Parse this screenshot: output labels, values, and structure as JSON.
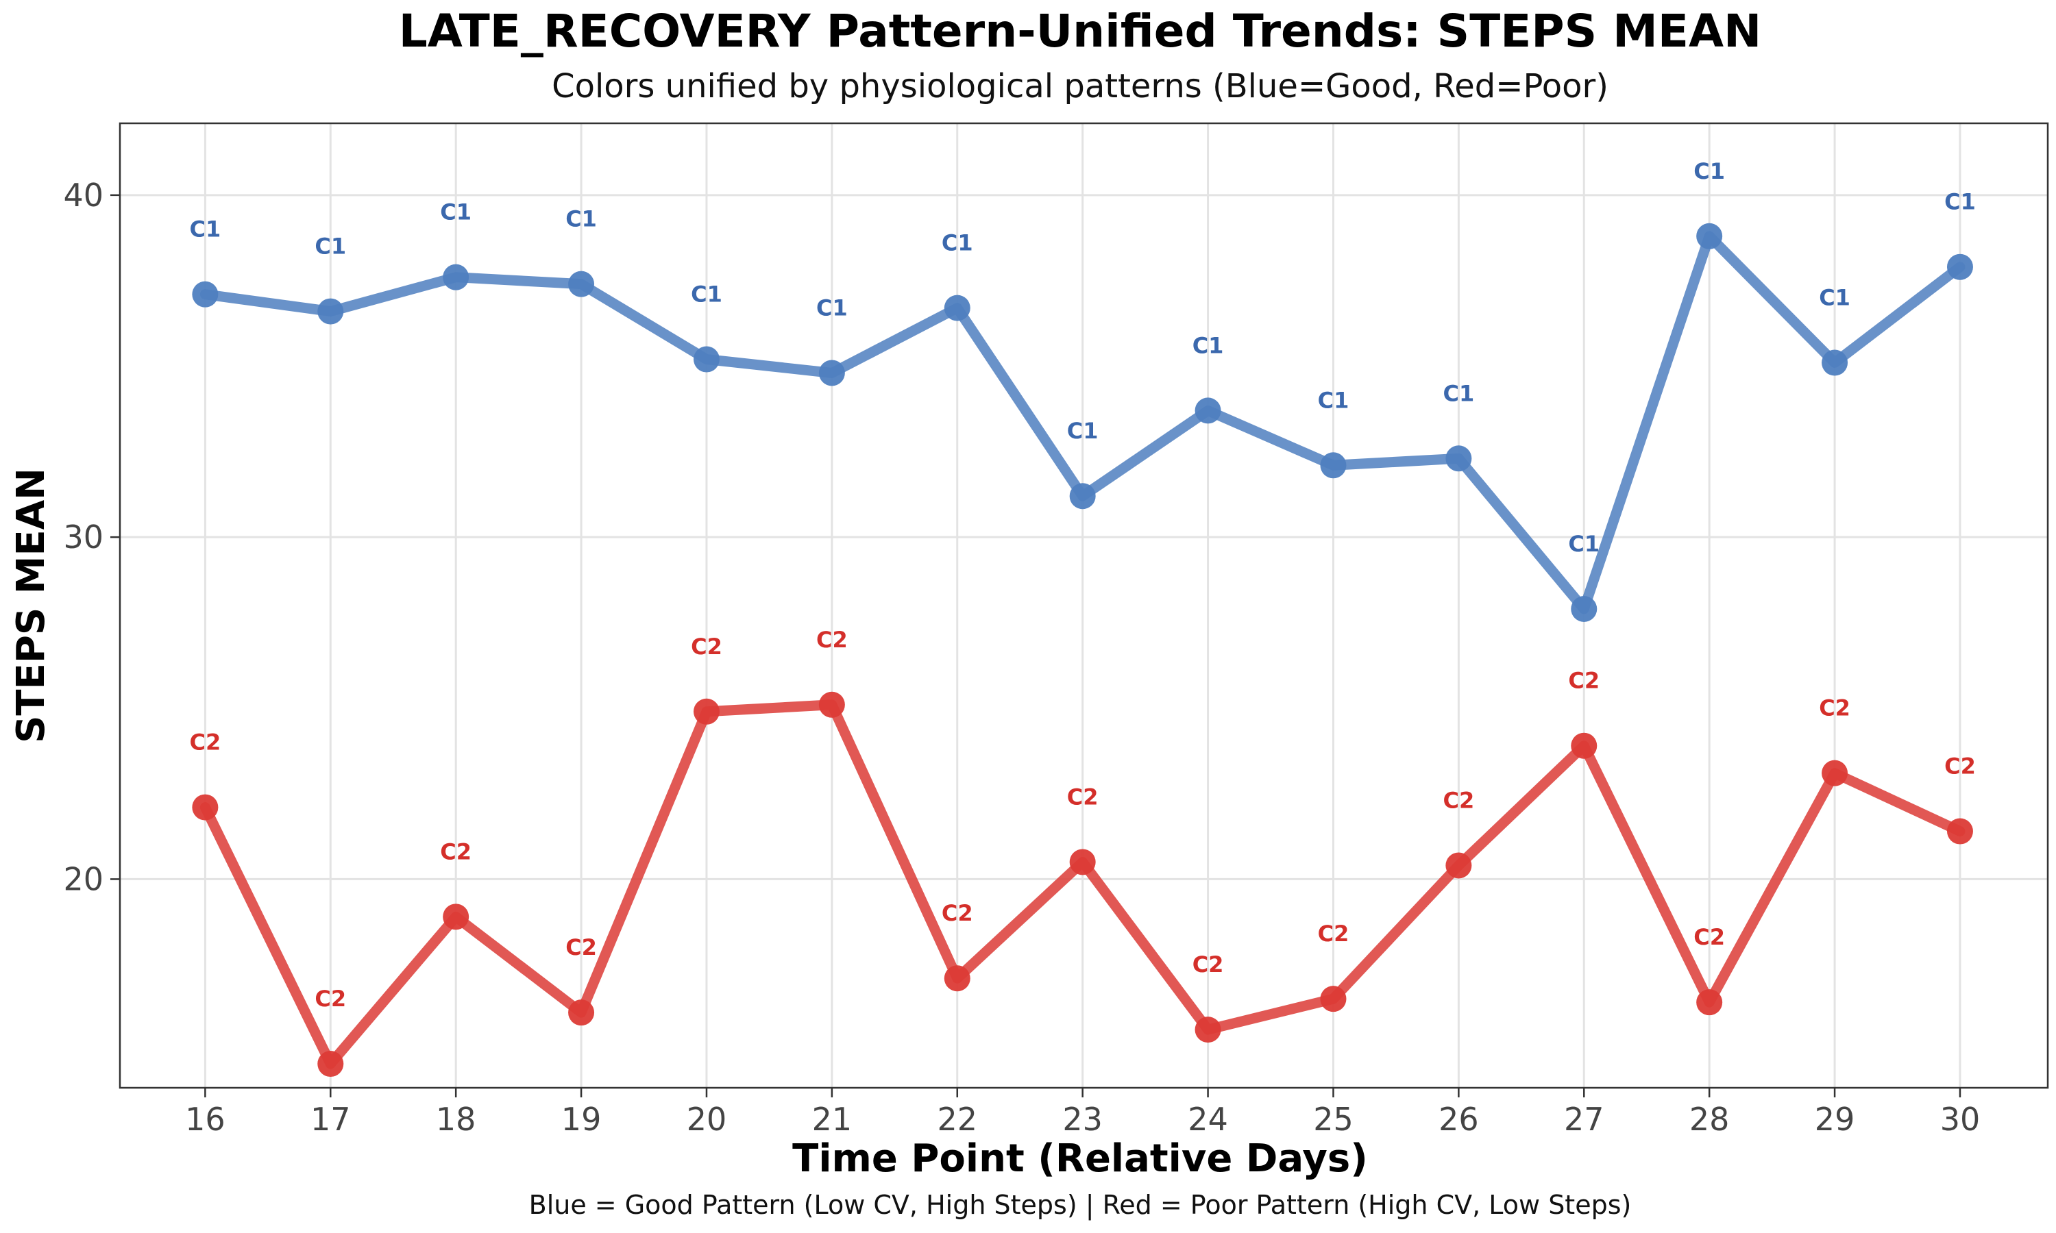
{
  "chart_data": {
    "type": "line",
    "title": "LATE_RECOVERY Pattern-Unified Trends: STEPS MEAN",
    "subtitle": "Colors unified by physiological patterns (Blue=Good, Red=Poor)",
    "xlabel": "Time Point (Relative Days)",
    "ylabel": "STEPS MEAN",
    "caption": "Blue = Good Pattern (Low CV, High Steps) | Red = Poor Pattern (High CV, Low Steps)",
    "x": [
      16,
      17,
      18,
      19,
      20,
      21,
      22,
      23,
      24,
      25,
      26,
      27,
      28,
      29,
      30
    ],
    "xlim": [
      15.32,
      30.7
    ],
    "ylim": [
      13.9,
      42.1
    ],
    "yticks": [
      20,
      30,
      40
    ],
    "grid": true,
    "legend": "none",
    "series": [
      {
        "label": "C1",
        "color": "#4f7fc0",
        "label_color": "#3b68ad",
        "values": [
          37.1,
          36.6,
          37.6,
          37.4,
          35.2,
          34.8,
          36.7,
          31.2,
          33.7,
          32.1,
          32.3,
          27.9,
          38.8,
          35.1,
          37.9
        ]
      },
      {
        "label": "C2",
        "color": "#dc3b36",
        "label_color": "#d42f2a",
        "values": [
          22.1,
          14.6,
          18.9,
          16.1,
          24.9,
          25.1,
          17.1,
          20.5,
          15.6,
          16.5,
          20.4,
          23.9,
          16.4,
          23.1,
          21.4
        ]
      }
    ]
  }
}
